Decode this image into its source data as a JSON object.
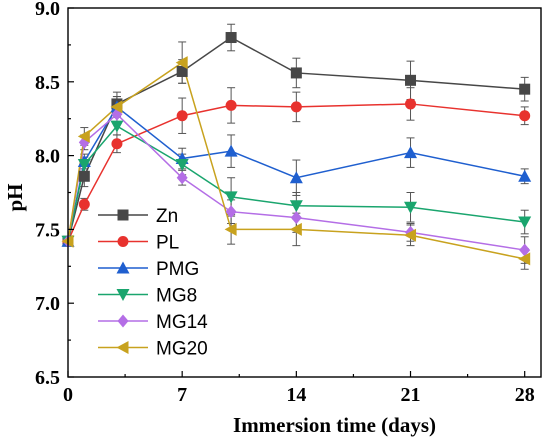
{
  "chart_data": {
    "type": "line",
    "xlabel": "Immersion time (days)",
    "ylabel": "pH",
    "xlim": [
      0,
      29
    ],
    "ylim": [
      6.5,
      9.0
    ],
    "xticks": [
      0,
      7,
      14,
      21,
      28
    ],
    "yticks": [
      6.5,
      7.0,
      7.5,
      8.0,
      8.5,
      9.0
    ],
    "xtick_labels": [
      "0",
      "7",
      "14",
      "21",
      "28"
    ],
    "ytick_labels": [
      "6.5",
      "7.0",
      "7.5",
      "8.0",
      "8.5",
      "9.0"
    ],
    "legend_position": "bottom-left",
    "grid": false,
    "series": [
      {
        "name": "Zn",
        "color": "#474747",
        "marker": "square",
        "x": [
          0,
          1,
          3,
          7,
          10,
          14,
          21,
          28
        ],
        "y": [
          7.42,
          7.86,
          8.35,
          8.57,
          8.8,
          8.56,
          8.51,
          8.45
        ],
        "err": [
          0.03,
          0.07,
          0.08,
          0.08,
          0.09,
          0.1,
          0.13,
          0.08
        ]
      },
      {
        "name": "PL",
        "color": "#e8322e",
        "marker": "circle",
        "x": [
          0,
          1,
          3,
          7,
          10,
          14,
          21,
          28
        ],
        "y": [
          7.42,
          7.67,
          8.08,
          8.27,
          8.34,
          8.33,
          8.35,
          8.27
        ],
        "err": [
          0.03,
          0.04,
          0.06,
          0.12,
          0.12,
          0.1,
          0.11,
          0.06
        ]
      },
      {
        "name": "PMG",
        "color": "#1f5fcf",
        "marker": "triangle-up",
        "x": [
          0,
          1,
          3,
          7,
          10,
          14,
          21,
          28
        ],
        "y": [
          7.42,
          7.96,
          8.33,
          7.98,
          8.03,
          7.85,
          8.02,
          7.86
        ],
        "err": [
          0.03,
          0.05,
          0.07,
          0.07,
          0.11,
          0.12,
          0.1,
          0.05
        ]
      },
      {
        "name": "MG8",
        "color": "#1aa56e",
        "marker": "triangle-down",
        "x": [
          0,
          1,
          3,
          7,
          10,
          14,
          21,
          28
        ],
        "y": [
          7.42,
          7.94,
          8.2,
          7.94,
          7.72,
          7.66,
          7.65,
          7.55
        ],
        "err": [
          0.03,
          0.05,
          0.06,
          0.07,
          0.13,
          0.09,
          0.1,
          0.08
        ]
      },
      {
        "name": "MG14",
        "color": "#b46ee6",
        "marker": "diamond",
        "x": [
          0,
          1,
          3,
          7,
          10,
          14,
          21,
          28
        ],
        "y": [
          7.42,
          8.09,
          8.28,
          7.85,
          7.62,
          7.58,
          7.48,
          7.36
        ],
        "err": [
          0.03,
          0.05,
          0.07,
          0.05,
          0.08,
          0.1,
          0.06,
          0.09
        ]
      },
      {
        "name": "MG20",
        "color": "#c8a21e",
        "marker": "triangle-left",
        "x": [
          0,
          1,
          3,
          7,
          10,
          14,
          21,
          28
        ],
        "y": [
          7.42,
          8.13,
          8.33,
          8.63,
          7.5,
          7.5,
          7.46,
          7.3
        ],
        "err": [
          0.03,
          0.06,
          0.07,
          0.14,
          0.1,
          0.11,
          0.07,
          0.07
        ]
      }
    ]
  }
}
